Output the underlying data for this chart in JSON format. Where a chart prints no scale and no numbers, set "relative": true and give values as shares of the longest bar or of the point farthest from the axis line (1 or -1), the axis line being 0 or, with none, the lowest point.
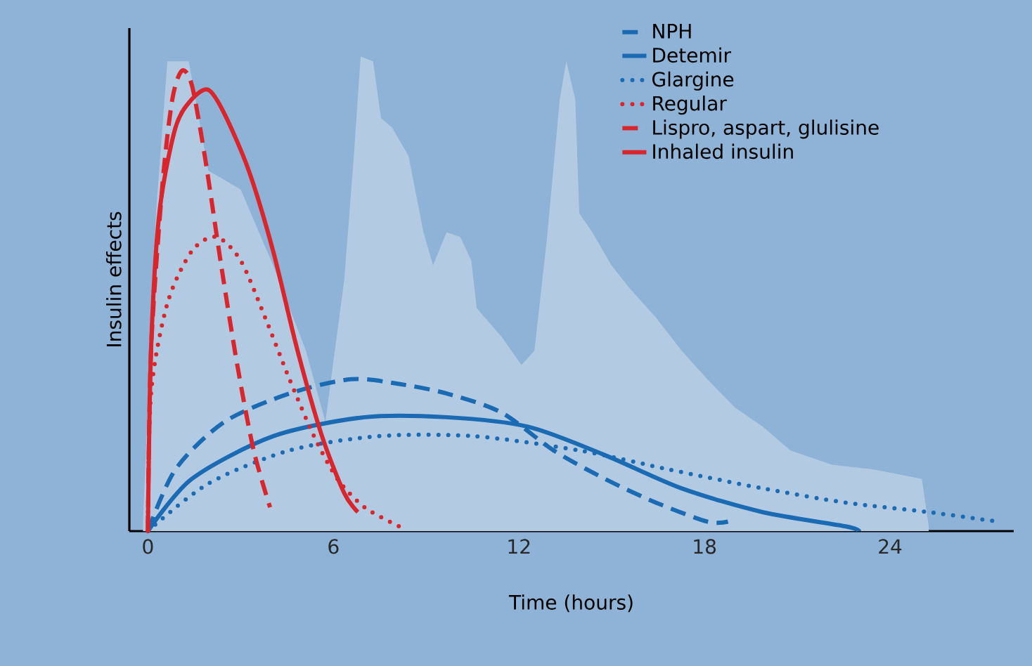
{
  "chart_data": {
    "type": "line",
    "xlabel": "Time (hours)",
    "ylabel": "Insulin effects",
    "relative": true,
    "xlim": [
      -0.6,
      28
    ],
    "xticks": [
      0,
      6,
      12,
      18,
      24
    ],
    "legend": "top right",
    "series": [
      {
        "type": "area",
        "color": "#b3cbe2",
        "x": [
          -0.16,
          0.26,
          0.63,
          1.32,
          1.95,
          3.0,
          4.05,
          5.11,
          5.74,
          6.35,
          6.66,
          6.88,
          7.28,
          7.54,
          7.9,
          8.43,
          8.91,
          9.22,
          9.66,
          10.1,
          10.46,
          10.63,
          11.43,
          12.08,
          12.5,
          12.91,
          13.32,
          13.53,
          13.82,
          13.95,
          14.37,
          14.99,
          15.6,
          16.43,
          17.26,
          18.09,
          18.99,
          19.88,
          20.78,
          22.12,
          23.46,
          25.03,
          25.25
        ],
        "values": [
          0.02,
          0.67,
          0.99,
          0.99,
          0.76,
          0.72,
          0.56,
          0.38,
          0.23,
          0.53,
          0.79,
          1,
          0.99,
          0.87,
          0.85,
          0.79,
          0.63,
          0.56,
          0.63,
          0.62,
          0.57,
          0.47,
          0.41,
          0.35,
          0.38,
          0.62,
          0.91,
          0.99,
          0.91,
          0.67,
          0.63,
          0.56,
          0.51,
          0.45,
          0.38,
          0.32,
          0.26,
          0.22,
          0.17,
          0.14,
          0.13,
          0.11,
          0.01
        ]
      },
      {
        "name": "NPH",
        "color": "#1a6ab4",
        "line_style": "dashed",
        "x": [
          0,
          0.89,
          2.47,
          4.58,
          6.57,
          8.12,
          9.66,
          11.43,
          13.12,
          14.78,
          16.43,
          18.09,
          18.76
        ],
        "values": [
          0,
          0.13,
          0.23,
          0.29,
          0.32,
          0.31,
          0.29,
          0.25,
          0.17,
          0.11,
          0.06,
          0.02,
          0.02
        ]
      },
      {
        "name": "Detemir",
        "color": "#1a6ab4",
        "line_style": "solid",
        "x": [
          0,
          1.42,
          4.05,
          7.01,
          9.66,
          12.29,
          14.78,
          17.26,
          19.88,
          22.57,
          23.0
        ],
        "values": [
          0,
          0.11,
          0.2,
          0.24,
          0.24,
          0.22,
          0.16,
          0.09,
          0.04,
          0.01,
          0
        ]
      },
      {
        "name": "Glargine",
        "color": "#1a6ab4",
        "line_style": "dotted",
        "x": [
          0,
          1.95,
          4.58,
          7.46,
          10.54,
          13.95,
          16.84,
          19.88,
          22.57,
          25.25,
          27.48
        ],
        "values": [
          0,
          0.1,
          0.17,
          0.2,
          0.2,
          0.17,
          0.13,
          0.09,
          0.06,
          0.04,
          0.02
        ]
      },
      {
        "name": "Regular",
        "color": "#d9262c",
        "line_style": "dotted",
        "x": [
          0,
          0.1,
          0.63,
          1.42,
          2.21,
          3.0,
          3.79,
          4.58,
          5.37,
          6.13,
          7.01,
          8.12
        ],
        "values": [
          0,
          0.29,
          0.48,
          0.59,
          0.62,
          0.57,
          0.45,
          0.32,
          0.2,
          0.11,
          0.05,
          0.01
        ]
      },
      {
        "name": "Lispro, aspart, glulisine",
        "color": "#d9262c",
        "line_style": "dashed",
        "x": [
          0,
          0.1,
          0.47,
          0.79,
          1.1,
          1.42,
          1.84,
          2.37,
          2.89,
          3.42,
          3.95
        ],
        "values": [
          0,
          0.38,
          0.73,
          0.91,
          0.97,
          0.94,
          0.79,
          0.56,
          0.35,
          0.17,
          0.05
        ]
      },
      {
        "name": "Inhaled insulin",
        "color": "#d9262c",
        "line_style": "solid",
        "x": [
          0,
          0.1,
          0.37,
          0.89,
          1.42,
          1.95,
          2.47,
          3.26,
          4.05,
          4.84,
          5.63,
          6.35,
          6.79
        ],
        "values": [
          0,
          0.38,
          0.67,
          0.85,
          0.91,
          0.93,
          0.88,
          0.76,
          0.59,
          0.38,
          0.2,
          0.08,
          0.04
        ]
      }
    ]
  }
}
